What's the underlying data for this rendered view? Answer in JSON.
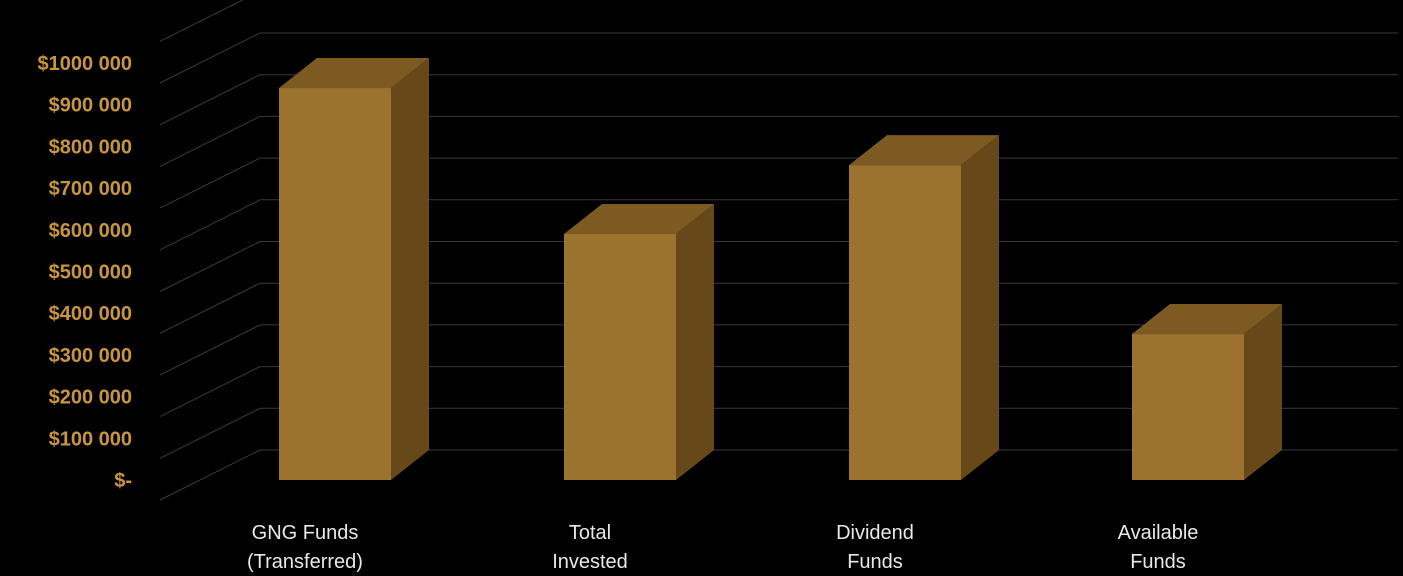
{
  "chart_data": {
    "type": "bar",
    "style": "3d-column",
    "categories": [
      [
        "GNG Funds",
        "(Transferred)"
      ],
      [
        "Total",
        "Invested"
      ],
      [
        "Dividend",
        "Funds"
      ],
      [
        "Available",
        "Funds"
      ]
    ],
    "values": [
      940000,
      590000,
      755000,
      350000
    ],
    "yticks": [
      0,
      100000,
      200000,
      300000,
      400000,
      500000,
      600000,
      700000,
      800000,
      900000,
      1000000
    ],
    "ytick_labels": [
      "$-",
      "$100 000",
      "$200 000",
      "$300 000",
      "$400 000",
      "$500 000",
      "$600 000",
      "$700 000",
      "$800 000",
      "$900 000",
      "$1000 000"
    ],
    "ylim": [
      0,
      1100000
    ],
    "grid": true,
    "legend": "none",
    "title": "",
    "xlabel": "",
    "ylabel": ""
  },
  "colors": {
    "background": "#000000",
    "bar_front": "#9b722e",
    "bar_top": "#7d5a22",
    "bar_side": "#674819",
    "gridline": "#3a3a3a",
    "ytick_text": "#c8953a",
    "xtick_text": "#e8e8e8"
  }
}
